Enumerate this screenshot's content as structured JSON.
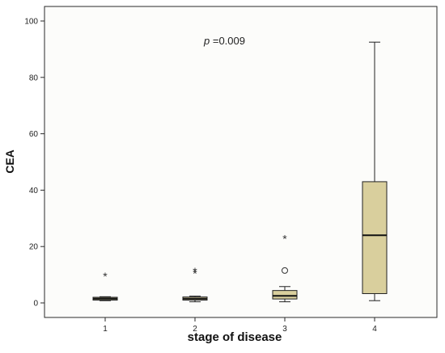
{
  "chart_data": {
    "type": "box",
    "xlabel": "stage of disease",
    "ylabel": "CEA",
    "ylim": [
      0,
      100
    ],
    "yticks": [
      0,
      20,
      40,
      60,
      80,
      100
    ],
    "categories": [
      "1",
      "2",
      "3",
      "4"
    ],
    "boxes": [
      {
        "category": "1",
        "whisker_low": 0.8,
        "q1": 1.0,
        "median": 1.5,
        "q3": 2.0,
        "whisker_high": 2.2,
        "outliers": [],
        "extremes": [
          9.8
        ]
      },
      {
        "category": "2",
        "whisker_low": 0.4,
        "q1": 1.0,
        "median": 1.5,
        "q3": 2.1,
        "whisker_high": 2.4,
        "outliers": [],
        "extremes": [
          10.8,
          11.4
        ]
      },
      {
        "category": "3",
        "whisker_low": 0.4,
        "q1": 1.4,
        "median": 2.5,
        "q3": 4.4,
        "whisker_high": 5.8,
        "outliers": [
          11.5
        ],
        "extremes": [
          23.0
        ]
      },
      {
        "category": "4",
        "whisker_low": 0.8,
        "q1": 3.3,
        "median": 24.0,
        "q3": 43.0,
        "whisker_high": 92.5,
        "outliers": [],
        "extremes": []
      }
    ],
    "box_color": "#d9cf9d",
    "grid": false,
    "annotation": {
      "p_symbol": "p",
      "p_text": " =0.009"
    }
  }
}
